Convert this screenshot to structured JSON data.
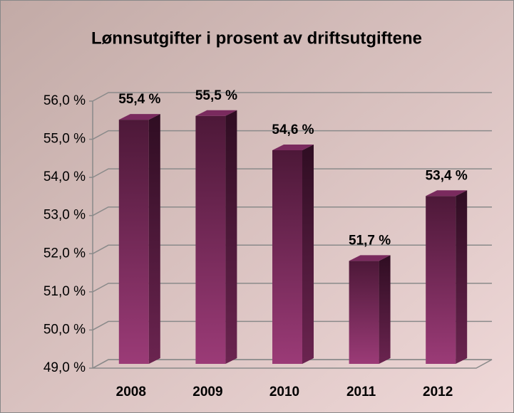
{
  "chart_data": {
    "type": "bar",
    "title": "Lønnsutgifter i prosent av driftsutgiftene",
    "categories": [
      "2008",
      "2009",
      "2010",
      "2011",
      "2012"
    ],
    "values": [
      55.4,
      55.5,
      54.6,
      51.7,
      53.4
    ],
    "value_labels": [
      "55,4 %",
      "55,5 %",
      "54,6 %",
      "51,7 %",
      "53,4 %"
    ],
    "color": "#7a2a5e",
    "ylim": [
      49,
      56
    ],
    "yticks": [
      {
        "value": 49,
        "label": "49,0 %"
      },
      {
        "value": 50,
        "label": "50,0 %"
      },
      {
        "value": 51,
        "label": "51,0 %"
      },
      {
        "value": 52,
        "label": "52,0 %"
      },
      {
        "value": 53,
        "label": "53,0 %"
      },
      {
        "value": 54,
        "label": "54,0 %"
      },
      {
        "value": 55,
        "label": "55,0 %"
      },
      {
        "value": 56,
        "label": "56,0 %"
      }
    ],
    "grid": true
  }
}
